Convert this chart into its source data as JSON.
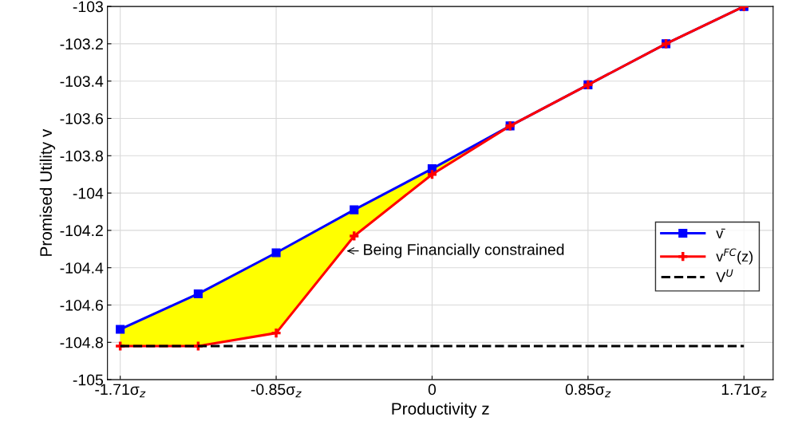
{
  "chart_data": {
    "type": "line",
    "xlabel": "Productivity z",
    "ylabel": "Promised Utility v",
    "x": [
      -1.71,
      -1.2825,
      -0.855,
      -0.4275,
      0,
      0.4275,
      0.855,
      1.2825,
      1.71
    ],
    "series": [
      {
        "name": "v̄",
        "color": "#0000ff",
        "marker": "square",
        "line_style": "solid",
        "values": [
          -104.73,
          -104.54,
          -104.32,
          -104.09,
          -103.87,
          -103.64,
          -103.42,
          -103.2,
          -103.0
        ],
        "lower": [
          -104.82,
          -104.82,
          -104.75,
          -104.23,
          -103.9,
          -103.64,
          -103.42,
          -103.2,
          -103.0
        ],
        "upper": [
          -104.73,
          -104.54,
          -104.32,
          -104.09,
          -103.87,
          -103.64,
          -103.42,
          -103.2,
          -103.0
        ]
      },
      {
        "name": "v$^{FC}$(z)",
        "color": "#ff0000",
        "marker": "cross",
        "line_style": "solid",
        "values": [
          -104.82,
          -104.82,
          -104.75,
          -104.23,
          -103.9,
          -103.64,
          -103.42,
          -103.2,
          -103.0
        ]
      },
      {
        "name": "V$^{U}$",
        "color": "#000000",
        "marker": "none",
        "line_style": "dashed",
        "values": [
          -104.82,
          -104.82,
          -104.82,
          -104.82,
          -104.82,
          -104.82,
          -104.82,
          -104.82,
          -104.82
        ]
      }
    ],
    "annotations": [
      {
        "text": "Being Financially constrained",
        "x": -0.48,
        "y": -104.31
      }
    ],
    "xlim": [
      -1.78,
      1.87
    ],
    "xticks": [
      {
        "value": -1.71,
        "label": "-1.71σ$_{z}$"
      },
      {
        "value": -0.855,
        "label": "-0.85σ$_{z}$"
      },
      0,
      {
        "value": 0.855,
        "label": "0.85σ$_{z}$"
      },
      {
        "value": 1.71,
        "label": "1.71σ$_{z}$"
      }
    ],
    "ylim": [
      -105,
      -103
    ],
    "yticks": [
      -105,
      -104.8,
      -104.6,
      -104.4,
      -104.2,
      -104,
      -103.8,
      -103.6,
      -103.4,
      -103.2,
      -103
    ],
    "grid": true,
    "legend": "right"
  }
}
